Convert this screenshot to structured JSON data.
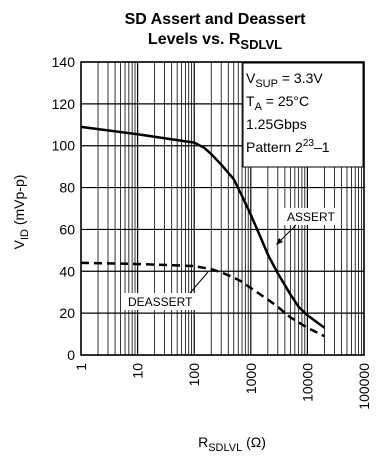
{
  "chart_data": {
    "type": "line",
    "title_line1": "SD Assert and Deassert",
    "title_line2_main": "Levels vs. R",
    "title_line2_sub": "SDLVL",
    "xlabel_main": "R",
    "xlabel_sub": "SDLVL",
    "xlabel_unit": " (Ω)",
    "ylabel_main": "V",
    "ylabel_sub": "ID",
    "ylabel_unit": " (mVp-p)",
    "x_scale": "log",
    "xlim": [
      1,
      100000
    ],
    "ylim": [
      0,
      140
    ],
    "x_ticks": [
      1,
      10,
      100,
      1000,
      10000,
      100000
    ],
    "x_tick_labels": [
      "1",
      "10",
      "100",
      "1000",
      "10000",
      "100000"
    ],
    "y_ticks": [
      0,
      20,
      40,
      60,
      80,
      100,
      120,
      140
    ],
    "y_tick_labels": [
      "0",
      "20",
      "40",
      "60",
      "80",
      "100",
      "120",
      "140"
    ],
    "grid": true,
    "legend_box": {
      "line1_main": "V",
      "line1_sub": "SUP",
      "line1_rest": " = 3.3V",
      "line2_main": "T",
      "line2_sub": "A",
      "line2_rest": " = 25°C",
      "line3": "1.25Gbps",
      "line4_main": "Pattern 2",
      "line4_sup": "23",
      "line4_rest": "–1",
      "placement": "top-right"
    },
    "series": [
      {
        "name": "ASSERT",
        "style": "solid",
        "x": [
          1,
          10,
          100,
          150,
          200,
          300,
          500,
          700,
          1000,
          1500,
          2000,
          3000,
          5000,
          7000,
          10000,
          20000
        ],
        "y": [
          109,
          105.5,
          101.5,
          99,
          96,
          91,
          84,
          76,
          67,
          56,
          48,
          39,
          29,
          23,
          19,
          13
        ]
      },
      {
        "name": "DEASSERT",
        "style": "dashed",
        "x": [
          1,
          10,
          100,
          200,
          300,
          500,
          700,
          1000,
          2000,
          3000,
          5000,
          10000,
          20000
        ],
        "y": [
          44,
          43.5,
          42.5,
          41,
          39.5,
          37,
          35,
          32,
          26.5,
          23,
          18,
          13,
          9
        ]
      }
    ],
    "annotations": [
      {
        "text": "ASSERT",
        "for": "ASSERT"
      },
      {
        "text": "DEASSERT",
        "for": "DEASSERT"
      }
    ],
    "colors": {
      "line": "#000000",
      "grid": "#000000",
      "background": "#ffffff"
    }
  }
}
